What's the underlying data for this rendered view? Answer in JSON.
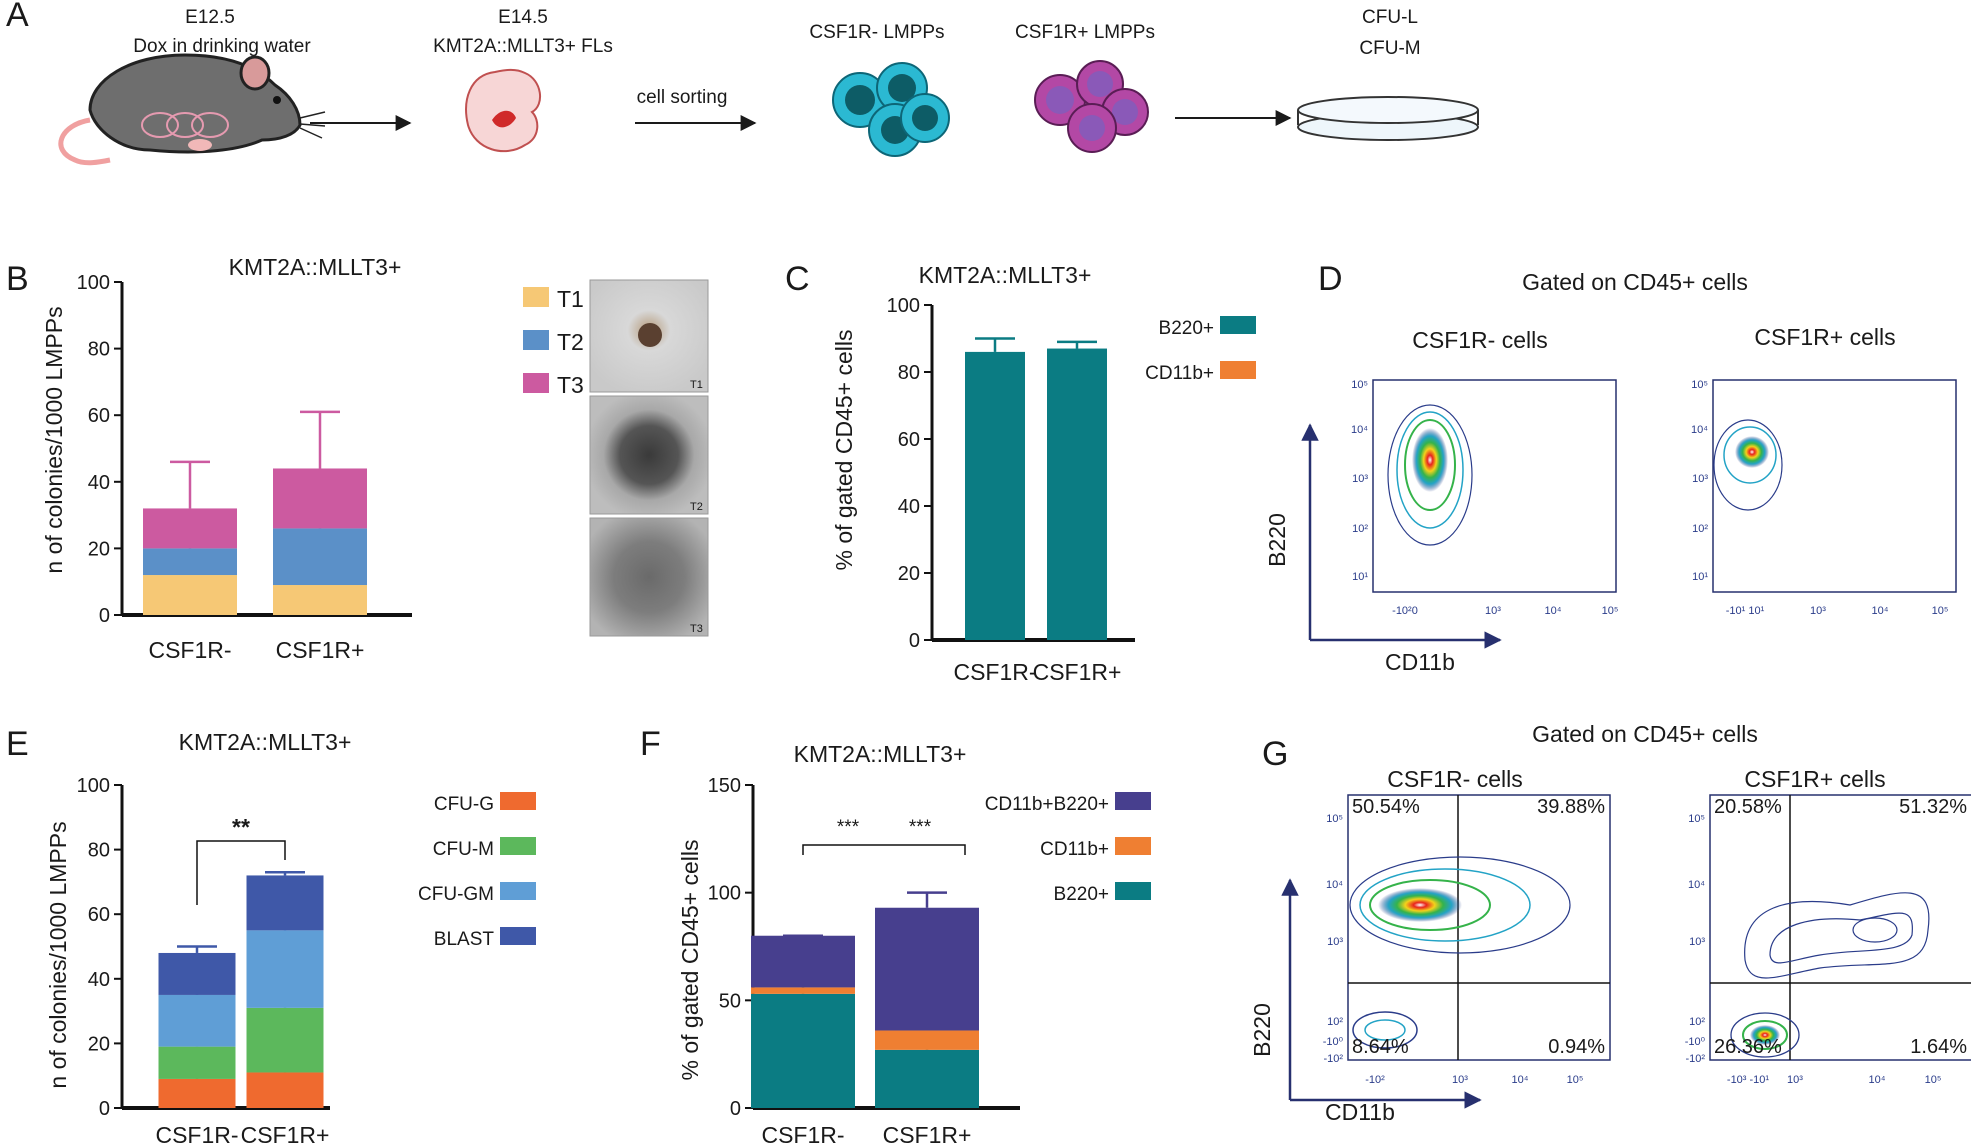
{
  "colors": {
    "T1": "#f6c875",
    "T2": "#5b90c8",
    "T3": "#cc5aa0",
    "teal": "#0b7c83",
    "orange": "#ef7f32",
    "cfu_g": "#ef6a2f",
    "cfu_m": "#5cb85c",
    "cfu_gm": "#5f9ed6",
    "blast": "#3f58a8",
    "purple": "#473f8e",
    "axisblue": "#27306f",
    "cyan_cell": "#2bb9d2",
    "magenta_cell": "#b348a5"
  },
  "panelA": {
    "label": "A",
    "step1_line1": "E12.5",
    "step1_line2": "Dox in drinking water",
    "step2_line1": "E14.5",
    "step2_line2": "KMT2A::MLLT3+ FLs",
    "step3": "cell sorting",
    "step4": "CSF1R- LMPPs",
    "step5": "CSF1R+ LMPPs",
    "step6_line1": "CFU-L",
    "step6_line2": "CFU-M",
    "icons": [
      "mouse-icon",
      "embryo-icon",
      "arrow-icon",
      "cells-icon",
      "petri-dish-icon"
    ]
  },
  "panelB": {
    "label": "B",
    "title": "KMT2A::MLLT3+",
    "ylabel": "n of colonies/1000 LMPPs",
    "photo_labels": [
      "T1",
      "T2",
      "T3"
    ]
  },
  "panelC": {
    "label": "C",
    "title": "KMT2A::MLLT3+",
    "ylabel": "% of gated CD45+ cells"
  },
  "panelD": {
    "label": "D",
    "title": "Gated on CD45+ cells",
    "sub1": "CSF1R- cells",
    "sub2": "CSF1R+ cells",
    "xlabel": "CD11b",
    "ylabel": "B220",
    "yticks": [
      "10⁵",
      "10⁴",
      "10³",
      "10²",
      "10¹"
    ],
    "xticks1": [
      "-10²0",
      "10³",
      "10⁴",
      "10⁵"
    ],
    "xticks2": [
      "-10¹ 10¹",
      "10³",
      "10⁴",
      "10⁵"
    ]
  },
  "panelE": {
    "label": "E",
    "title": "KMT2A::MLLT3+",
    "ylabel": "n of colonies/1000 LMPPs",
    "sig": "**"
  },
  "panelF": {
    "label": "F",
    "title": "KMT2A::MLLT3+",
    "ylabel": "% of gated CD45+ cells",
    "sig1": "***",
    "sig2": "***"
  },
  "panelG": {
    "label": "G",
    "title": "Gated on CD45+ cells",
    "sub1": "CSF1R- cells",
    "sub2": "CSF1R+ cells",
    "xlabel": "CD11b",
    "ylabel": "B220",
    "q1": [
      "50.54%",
      "39.88%",
      "8.64%",
      "0.94%"
    ],
    "q2": [
      "20.58%",
      "51.32%",
      "26.36%",
      "1.64%"
    ],
    "yticks": [
      "10⁵",
      "10⁴",
      "10³",
      "10²",
      "-10⁰",
      "-10²"
    ],
    "xticks1": [
      "-10²",
      "10³",
      "10⁴",
      "10⁵"
    ],
    "xticks2": [
      "-10³ -10¹",
      "10³",
      "10⁴",
      "10⁵"
    ]
  },
  "chart_data": [
    {
      "id": "B",
      "type": "bar",
      "stacked": true,
      "categories": [
        "CSF1R-",
        "CSF1R+"
      ],
      "series": [
        {
          "name": "T1",
          "values": [
            12,
            9
          ],
          "err": [
            17,
            12
          ]
        },
        {
          "name": "T2",
          "values": [
            8,
            17
          ],
          "err": [
            25,
            41
          ]
        },
        {
          "name": "T3",
          "values": [
            12,
            18
          ],
          "err": [
            46,
            61
          ]
        }
      ],
      "ylim": [
        0,
        100
      ],
      "yticks": [
        0,
        20,
        40,
        60,
        80,
        100
      ]
    },
    {
      "id": "C",
      "type": "bar",
      "stacked": false,
      "categories": [
        "CSF1R-",
        "CSF1R+"
      ],
      "series": [
        {
          "name": "B220+",
          "values": [
            86,
            87
          ],
          "err": [
            90,
            89
          ]
        },
        {
          "name": "CD11b+",
          "values": [
            0,
            0
          ]
        }
      ],
      "ylim": [
        0,
        100
      ],
      "yticks": [
        0,
        20,
        40,
        60,
        80,
        100
      ]
    },
    {
      "id": "E",
      "type": "bar",
      "stacked": true,
      "categories": [
        "CSF1R-",
        "CSF1R+"
      ],
      "series": [
        {
          "name": "CFU-G",
          "values": [
            9,
            11
          ],
          "err": [
            11,
            14
          ]
        },
        {
          "name": "CFU-M",
          "values": [
            10,
            20
          ],
          "err": [
            21,
            33
          ]
        },
        {
          "name": "CFU-GM",
          "values": [
            16,
            24
          ],
          "err": [
            40,
            60
          ]
        },
        {
          "name": "BLAST",
          "values": [
            13,
            17
          ],
          "err": [
            50,
            73
          ]
        }
      ],
      "ylim": [
        0,
        100
      ],
      "yticks": [
        0,
        20,
        40,
        60,
        80,
        100
      ]
    },
    {
      "id": "F",
      "type": "bar",
      "stacked": true,
      "categories": [
        "CSF1R-",
        "CSF1R+"
      ],
      "series": [
        {
          "name": "B220+",
          "values": [
            53,
            27
          ],
          "err": [
            63,
            35
          ]
        },
        {
          "name": "CD11b+",
          "values": [
            3,
            9
          ]
        },
        {
          "name": "CD11b+B220+",
          "values": [
            24,
            57
          ],
          "err": [
            80,
            100
          ]
        }
      ],
      "ylim": [
        0,
        150
      ],
      "yticks": [
        0,
        50,
        100,
        150
      ]
    }
  ]
}
